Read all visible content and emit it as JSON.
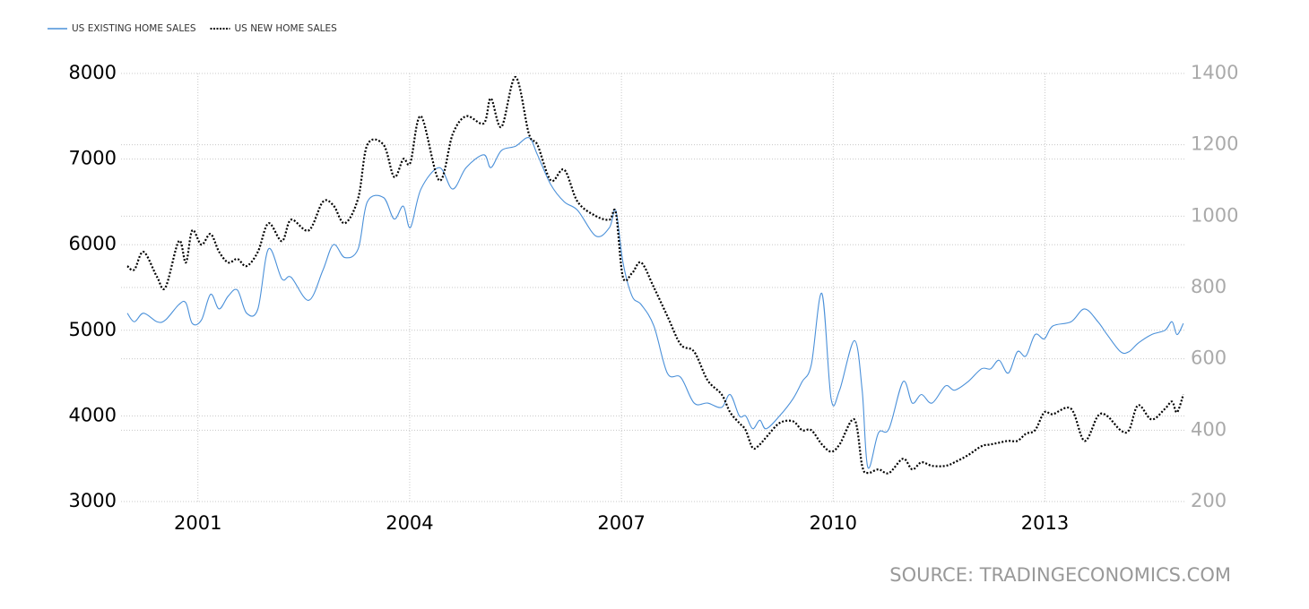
{
  "chart_data": {
    "type": "line",
    "x": [
      2000.0,
      2000.1,
      2000.23,
      2000.42,
      2000.54,
      2000.73,
      2000.83,
      2000.92,
      2001.05,
      2001.18,
      2001.3,
      2001.43,
      2001.56,
      2001.69,
      2001.85,
      2002.0,
      2002.19,
      2002.32,
      2002.57,
      2002.77,
      2002.92,
      2003.08,
      2003.27,
      2003.4,
      2003.63,
      2003.78,
      2003.91,
      2004.01,
      2004.16,
      2004.42,
      2004.61,
      2004.8,
      2005.05,
      2005.15,
      2005.3,
      2005.5,
      2005.69,
      2005.81,
      2006.0,
      2006.19,
      2006.38,
      2006.64,
      2006.83,
      2006.92,
      2007.02,
      2007.15,
      2007.28,
      2007.46,
      2007.65,
      2007.84,
      2008.03,
      2008.22,
      2008.42,
      2008.54,
      2008.67,
      2008.76,
      2008.86,
      2008.96,
      2009.05,
      2009.24,
      2009.43,
      2009.56,
      2009.69,
      2009.84,
      2009.97,
      2010.09,
      2010.3,
      2010.41,
      2010.49,
      2010.64,
      2010.79,
      2010.99,
      2011.12,
      2011.25,
      2011.4,
      2011.59,
      2011.72,
      2011.91,
      2012.1,
      2012.23,
      2012.35,
      2012.48,
      2012.61,
      2012.73,
      2012.86,
      2012.99,
      2013.11,
      2013.37,
      2013.56,
      2013.75,
      2013.88,
      2014.07,
      2014.19,
      2014.32,
      2014.51,
      2014.7,
      2014.8,
      2014.87,
      2014.96
    ],
    "series": [
      {
        "name": "US EXISTING HOME SALES",
        "color": "#4a90d9",
        "axis": "y",
        "values": [
          5200,
          5100,
          5200,
          5100,
          5120,
          5300,
          5320,
          5080,
          5120,
          5420,
          5250,
          5400,
          5470,
          5200,
          5250,
          5950,
          5600,
          5620,
          5350,
          5700,
          6000,
          5850,
          5950,
          6500,
          6550,
          6300,
          6450,
          6200,
          6650,
          6900,
          6650,
          6900,
          7050,
          6900,
          7100,
          7150,
          7250,
          7050,
          6700,
          6500,
          6400,
          6100,
          6200,
          6400,
          5800,
          5400,
          5300,
          5050,
          4500,
          4450,
          4150,
          4150,
          4100,
          4250,
          4000,
          4000,
          3850,
          3950,
          3850,
          4000,
          4200,
          4400,
          4600,
          5430,
          4200,
          4300,
          4880,
          4300,
          3400,
          3800,
          3850,
          4400,
          4150,
          4250,
          4150,
          4350,
          4300,
          4400,
          4550,
          4550,
          4650,
          4500,
          4750,
          4700,
          4950,
          4900,
          5050,
          5100,
          5250,
          5100,
          4950,
          4750,
          4750,
          4850,
          4950,
          5000,
          5100,
          4950,
          5080
        ]
      },
      {
        "name": "US NEW HOME SALES",
        "color": "#000000",
        "axis": "y2",
        "values": [
          860,
          850,
          900,
          830,
          800,
          930,
          870,
          960,
          920,
          950,
          900,
          870,
          880,
          860,
          900,
          980,
          930,
          990,
          960,
          1040,
          1030,
          980,
          1050,
          1200,
          1200,
          1110,
          1160,
          1150,
          1280,
          1100,
          1230,
          1280,
          1260,
          1330,
          1250,
          1390,
          1230,
          1200,
          1100,
          1130,
          1040,
          1000,
          990,
          1010,
          830,
          840,
          870,
          800,
          720,
          640,
          620,
          540,
          500,
          450,
          420,
          400,
          350,
          360,
          380,
          420,
          425,
          400,
          400,
          360,
          340,
          360,
          430,
          300,
          280,
          290,
          280,
          320,
          290,
          310,
          300,
          300,
          310,
          330,
          355,
          360,
          365,
          370,
          370,
          390,
          400,
          450,
          445,
          460,
          370,
          440,
          440,
          400,
          400,
          470,
          430,
          460,
          480,
          450,
          500
        ]
      }
    ],
    "xlim": [
      2000,
      2015
    ],
    "xticks": [
      2001,
      2004,
      2007,
      2010,
      2013
    ],
    "ylim": [
      3000,
      8000
    ],
    "yticks": [
      3000,
      4000,
      5000,
      6000,
      7000,
      8000
    ],
    "y2lim": [
      200,
      1400
    ],
    "y2ticks": [
      200,
      400,
      600,
      800,
      1000,
      1200,
      1400
    ],
    "grid": true,
    "legend": "top-left",
    "source": "SOURCE: TRADINGECONOMICS.COM"
  }
}
